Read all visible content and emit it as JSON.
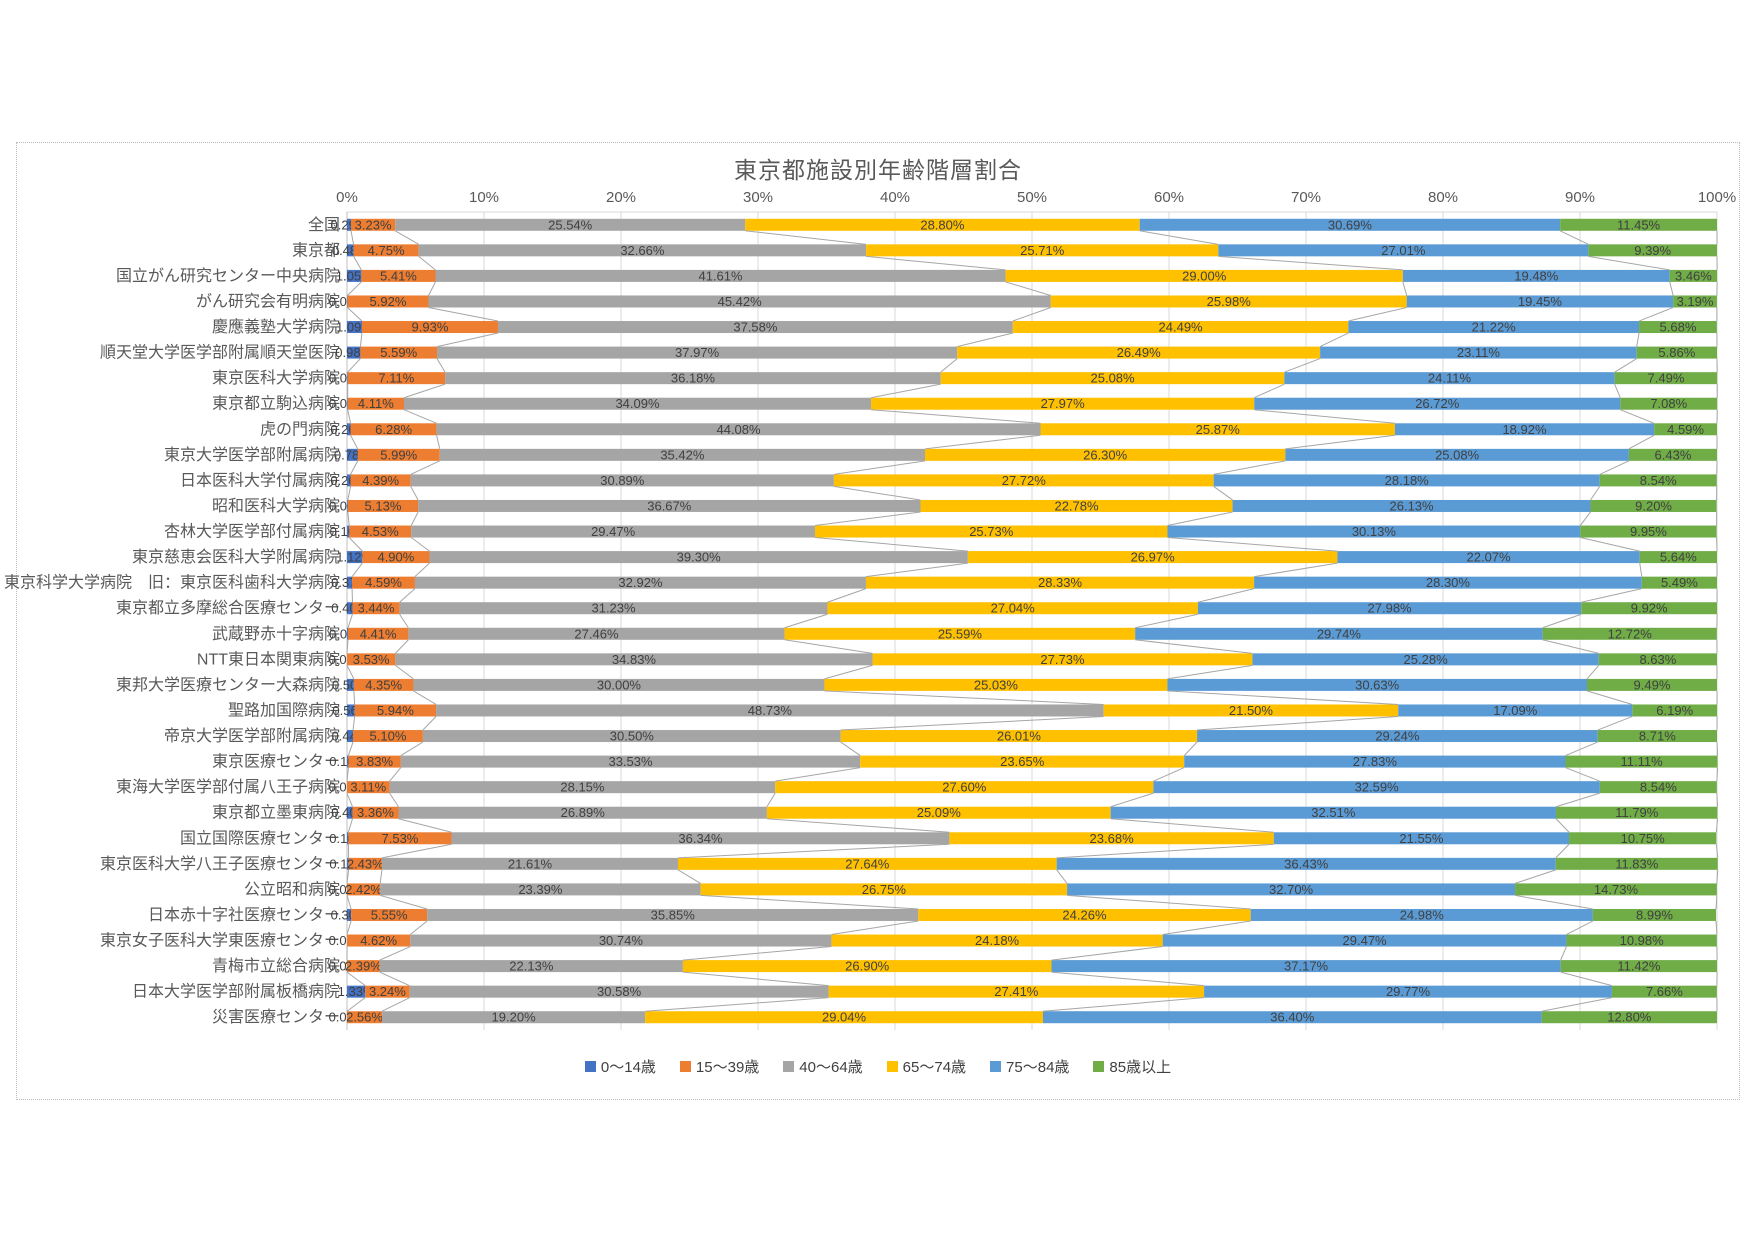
{
  "chart_data": {
    "type": "bar",
    "subtype": "horizontal-stacked",
    "title": "東京都施設別年齢階層割合",
    "value_label_format": "0.00%",
    "x_axis": {
      "position": "top",
      "min": 0,
      "max": 100,
      "tick_step": 10,
      "grid": true,
      "tick_labels": [
        "0%",
        "10%",
        "20%",
        "30%",
        "40%",
        "50%",
        "60%",
        "70%",
        "80%",
        "90%",
        "100%"
      ]
    },
    "legend": {
      "position": "bottom"
    },
    "series": [
      {
        "name": "0〜14歳",
        "color": "#4472C4"
      },
      {
        "name": "15〜39歳",
        "color": "#ED7D31"
      },
      {
        "name": "40〜64歳",
        "color": "#A5A5A5"
      },
      {
        "name": "65〜74歳",
        "color": "#FFC000"
      },
      {
        "name": "75〜84歳",
        "color": "#5B9BD5"
      },
      {
        "name": "85歳以上",
        "color": "#70AD47"
      }
    ],
    "categories": [
      "全国",
      "東京都",
      "国立がん研究センター中央病院",
      "がん研究会有明病院",
      "慶應義塾大学病院",
      "順天堂大学医学部附属順天堂医院",
      "東京医科大学病院",
      "東京都立駒込病院",
      "虎の門病院",
      "東京大学医学部附属病院",
      "日本医科大学付属病院",
      "昭和医科大学病院",
      "杏林大学医学部付属病院",
      "東京慈恵会医科大学附属病院",
      "東京科学大学病院　旧：東京医科歯科大学病院",
      "東京都立多摩総合医療センター",
      "武蔵野赤十字病院",
      "NTT東日本関東病院",
      "東邦大学医療センター大森病院",
      "聖路加国際病院",
      "帝京大学医学部附属病院",
      "東京医療センター",
      "東海大学医学部付属八王子病院",
      "東京都立墨東病院",
      "国立国際医療センター",
      "東京医科大学八王子医療センター",
      "公立昭和病院",
      "日本赤十字社医療センター",
      "東京女子医科大学東医療センター",
      "青梅市立総合病院",
      "日本大学医学部附属板橋病院",
      "災害医療センター"
    ],
    "values": [
      [
        0.29,
        3.23,
        25.54,
        28.8,
        30.69,
        11.45
      ],
      [
        0.48,
        4.75,
        32.66,
        25.71,
        27.01,
        9.39
      ],
      [
        1.05,
        5.41,
        41.61,
        29.0,
        19.48,
        3.46
      ],
      [
        0.03,
        5.92,
        45.42,
        25.98,
        19.45,
        3.19
      ],
      [
        1.09,
        9.93,
        37.58,
        24.49,
        21.22,
        5.68
      ],
      [
        0.98,
        5.59,
        37.97,
        26.49,
        23.11,
        5.86
      ],
      [
        0.05,
        7.11,
        36.18,
        25.08,
        24.11,
        7.49
      ],
      [
        0.05,
        4.11,
        34.09,
        27.97,
        26.72,
        7.08
      ],
      [
        0.26,
        6.28,
        44.08,
        25.87,
        18.92,
        4.59
      ],
      [
        0.78,
        5.99,
        35.42,
        26.3,
        25.08,
        6.43
      ],
      [
        0.26,
        4.39,
        30.89,
        27.72,
        28.18,
        8.54
      ],
      [
        0.06,
        5.13,
        36.67,
        22.78,
        26.13,
        9.2
      ],
      [
        0.16,
        4.53,
        29.47,
        25.73,
        30.13,
        9.95
      ],
      [
        1.12,
        4.9,
        39.3,
        26.97,
        22.07,
        5.64
      ],
      [
        0.37,
        4.59,
        32.92,
        28.33,
        28.3,
        5.49
      ],
      [
        0.4,
        3.44,
        31.23,
        27.04,
        27.98,
        9.92
      ],
      [
        0.07,
        4.41,
        27.46,
        25.59,
        29.74,
        12.72
      ],
      [
        0.0,
        3.53,
        34.83,
        27.73,
        25.28,
        8.63
      ],
      [
        0.5,
        4.35,
        30.0,
        25.03,
        30.63,
        9.49
      ],
      [
        0.56,
        5.94,
        48.73,
        21.5,
        17.09,
        6.19
      ],
      [
        0.44,
        5.1,
        30.5,
        26.01,
        29.24,
        8.71
      ],
      [
        0.1,
        3.83,
        33.53,
        23.65,
        27.83,
        11.11
      ],
      [
        0.0,
        3.11,
        28.15,
        27.6,
        32.59,
        8.54
      ],
      [
        0.4,
        3.36,
        26.89,
        25.09,
        32.51,
        11.79
      ],
      [
        0.1,
        7.53,
        36.34,
        23.68,
        21.55,
        10.75
      ],
      [
        0.12,
        2.43,
        21.61,
        27.64,
        36.43,
        11.83
      ],
      [
        0.0,
        2.42,
        23.39,
        26.75,
        32.7,
        14.73
      ],
      [
        0.3,
        5.55,
        35.85,
        24.26,
        24.98,
        8.99
      ],
      [
        0.0,
        4.62,
        30.74,
        24.18,
        29.47,
        10.98
      ],
      [
        0.0,
        2.39,
        22.13,
        26.9,
        37.17,
        11.42
      ],
      [
        1.33,
        3.24,
        30.58,
        27.41,
        29.77,
        7.66
      ],
      [
        0.0,
        2.56,
        19.2,
        29.04,
        36.4,
        12.8
      ]
    ],
    "style": {
      "background": "#FFFFFF",
      "frame_border_color": "#BDBDBD",
      "title_color": "#595959",
      "axis_text_color": "#595959",
      "category_text_color": "#595959",
      "value_label_color": "#404040",
      "gridline_color": "#D9D9D9",
      "axis_line_color": "#BFBFBF",
      "series_connector_color": "#A6A6A6"
    }
  }
}
